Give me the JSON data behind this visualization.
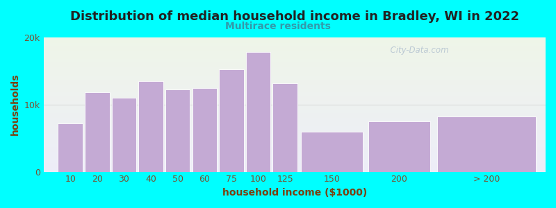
{
  "title": "Distribution of median household income in Bradley, WI in 2022",
  "subtitle": "Multirace residents",
  "xlabel": "household income ($1000)",
  "ylabel": "households",
  "background_color": "#00FFFF",
  "plot_bg_top": "#eef5e8",
  "plot_bg_bottom": "#ededf8",
  "bar_color": "#c4aad4",
  "bar_edge_color": "#ffffff",
  "categories": [
    "10",
    "20",
    "30",
    "40",
    "50",
    "60",
    "75",
    "100",
    "125",
    "150",
    "200",
    "> 200"
  ],
  "values": [
    7200,
    11800,
    11000,
    13500,
    12200,
    12500,
    15200,
    17800,
    13200,
    6000,
    7500,
    8200
  ],
  "bar_widths": [
    1,
    1,
    1,
    1,
    1,
    1,
    1,
    1,
    1,
    2.5,
    2.5,
    4
  ],
  "bar_lefts": [
    0,
    1,
    2,
    3,
    4,
    5,
    6,
    7,
    8,
    9,
    11.5,
    14
  ],
  "ylim": [
    0,
    20000
  ],
  "yticks": [
    0,
    10000,
    20000
  ],
  "ytick_labels": [
    "0",
    "10k",
    "20k"
  ],
  "title_fontsize": 13,
  "subtitle_fontsize": 10,
  "axis_label_fontsize": 10,
  "tick_fontsize": 9,
  "title_color": "#222222",
  "subtitle_color": "#3399aa",
  "axis_label_color": "#7a4010",
  "tick_color": "#7a5030",
  "watermark_text": "  City-Data.com"
}
